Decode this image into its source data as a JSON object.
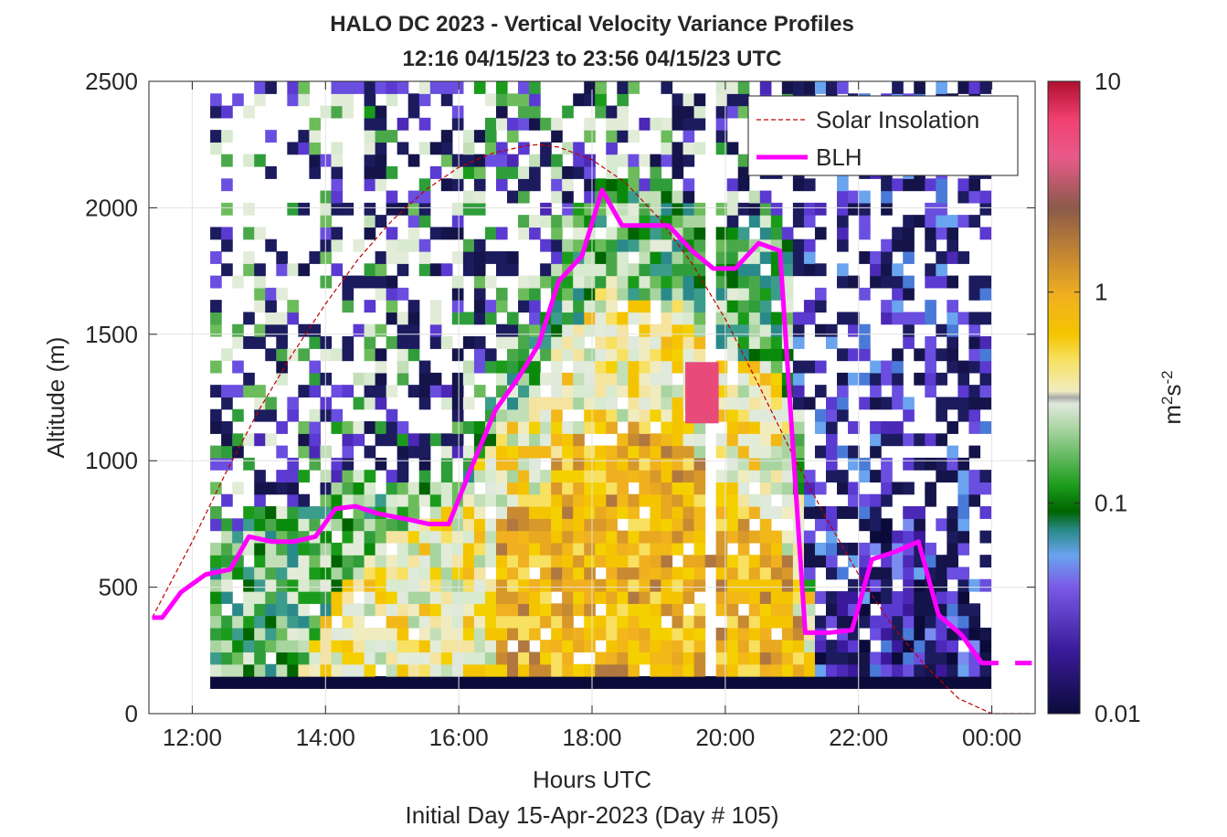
{
  "chart_data": {
    "type": "heatmap",
    "title": "HALO DC 2023 - Vertical Velocity Variance Profiles",
    "subtitle": "12:16 04/15/23 to 23:56 04/15/23  UTC",
    "xlabel": "Hours UTC",
    "xlabel2": "Initial Day 15-Apr-2023 (Day # 105)",
    "ylabel": "Altitude (m)",
    "xlim": [
      11.35,
      24.65
    ],
    "ylim": [
      0,
      2500
    ],
    "x_ticks": [
      12,
      14,
      16,
      18,
      20,
      22,
      24
    ],
    "x_tick_labels": [
      "12:00",
      "14:00",
      "16:00",
      "18:00",
      "20:00",
      "22:00",
      "00:00"
    ],
    "y_ticks": [
      0,
      500,
      1000,
      1500,
      2000,
      2500
    ],
    "y_tick_labels": [
      "0",
      "500",
      "1000",
      "1500",
      "2000",
      "2500"
    ],
    "grid": true,
    "legend_position": "top-right",
    "colorbar": {
      "label": "m²s⁻²",
      "label_base": "m",
      "label_exp1": "2",
      "label_mid": "s",
      "label_exp2": "-2",
      "scale": "log",
      "range": [
        0.01,
        10
      ],
      "ticks": [
        0.01,
        0.1,
        1,
        10
      ],
      "tick_labels": [
        "0.01",
        "0.1",
        "1",
        "10"
      ]
    },
    "heatmap_time_range": [
      12.27,
      23.93
    ],
    "heatmap_altitude_range": [
      100,
      2500
    ],
    "series": [
      {
        "name": "Solar Insolation",
        "style": "dashed",
        "color": "#c00000",
        "x": [
          11.4,
          12.0,
          12.5,
          13.0,
          13.5,
          14.0,
          14.5,
          15.0,
          15.5,
          16.0,
          16.5,
          17.0,
          17.2,
          17.5,
          18.0,
          18.5,
          19.0,
          19.5,
          20.0,
          20.5,
          21.0,
          21.5,
          22.0,
          22.5,
          23.0,
          23.5,
          24.0,
          24.6
        ],
        "y": [
          380,
          680,
          950,
          1200,
          1420,
          1620,
          1800,
          1950,
          2070,
          2160,
          2215,
          2245,
          2250,
          2240,
          2190,
          2100,
          1960,
          1780,
          1560,
          1300,
          1030,
          780,
          550,
          350,
          190,
          60,
          0,
          0
        ]
      },
      {
        "name": "BLH",
        "style": "solid",
        "color": "#ff00ff",
        "x": [
          11.4,
          11.55,
          11.83,
          12.2,
          12.57,
          12.85,
          13.2,
          13.52,
          13.85,
          14.15,
          14.45,
          14.8,
          15.2,
          15.55,
          15.85,
          16.2,
          16.55,
          16.9,
          17.2,
          17.5,
          17.85,
          18.15,
          18.45,
          18.8,
          19.15,
          19.5,
          19.82,
          20.15,
          20.5,
          20.82,
          21.2,
          21.55,
          21.9,
          22.2,
          22.55,
          22.9,
          23.2,
          23.55,
          23.85,
          24.1
        ],
        "y": [
          380,
          380,
          480,
          550,
          570,
          700,
          680,
          680,
          700,
          810,
          820,
          790,
          770,
          750,
          750,
          980,
          1200,
          1330,
          1460,
          1710,
          1810,
          2070,
          1930,
          1930,
          1930,
          1830,
          1760,
          1760,
          1860,
          1830,
          320,
          320,
          330,
          610,
          640,
          680,
          390,
          310,
          200,
          200
        ],
        "extra_segment": {
          "x": [
            24.35,
            24.6
          ],
          "y": [
            200,
            200
          ]
        }
      }
    ]
  }
}
